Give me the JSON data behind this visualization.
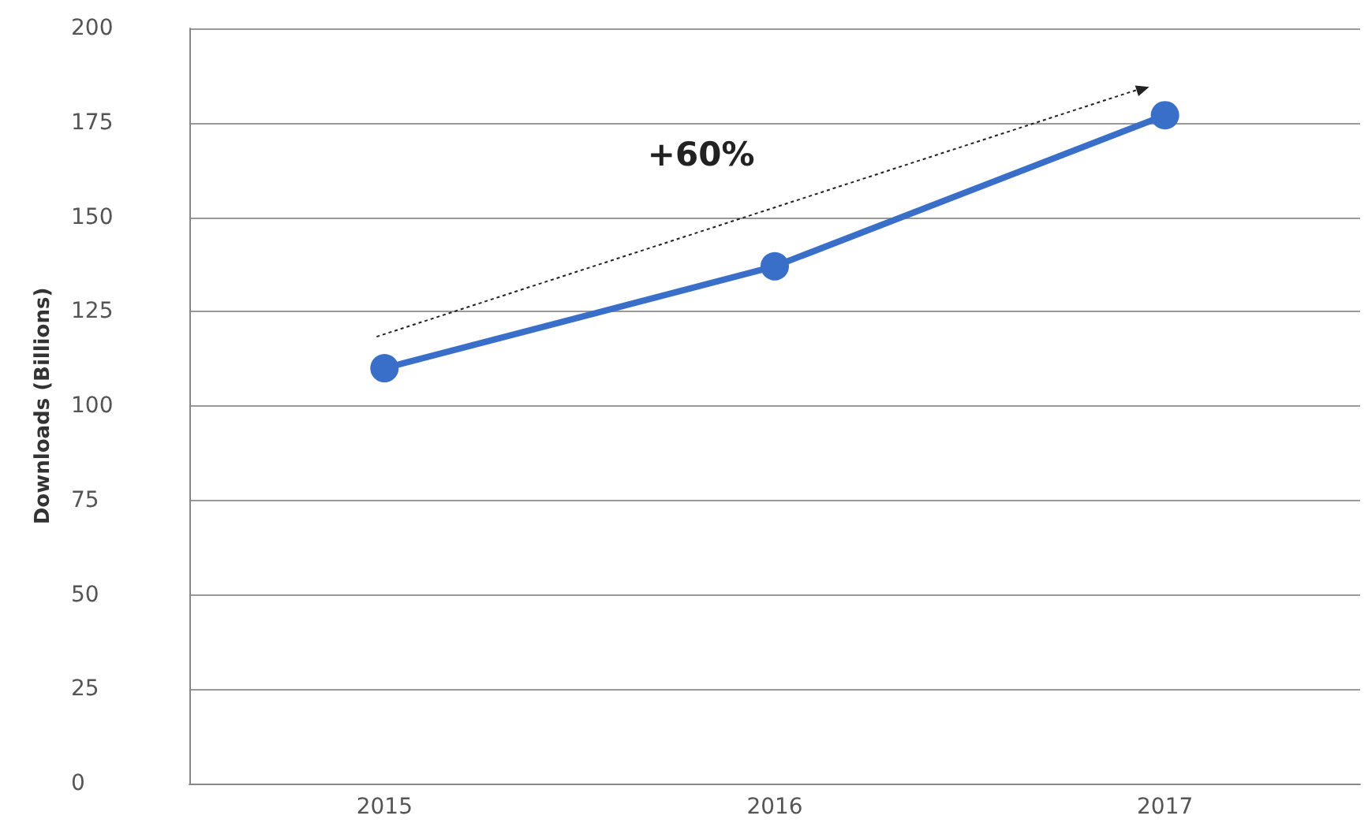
{
  "chart_data": {
    "type": "line",
    "ylabel": "Downloads (Billions)",
    "categories": [
      "2015",
      "2016",
      "2017"
    ],
    "series": [
      {
        "color": "#3a6fc9",
        "values": [
          110,
          137,
          177
        ]
      }
    ],
    "ylim": [
      0,
      200
    ],
    "yticks": [
      0,
      25,
      50,
      75,
      100,
      125,
      150,
      175,
      200
    ],
    "grid": "y",
    "marker": "circle",
    "line_style": "solid",
    "annotations": [
      "+60%"
    ]
  }
}
